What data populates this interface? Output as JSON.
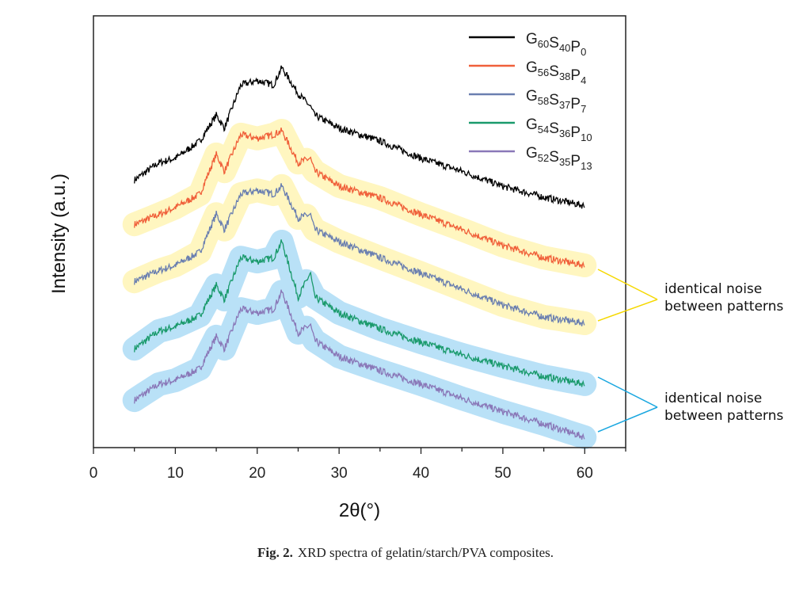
{
  "chart_data": {
    "type": "line",
    "title": "",
    "xlabel": "2θ(°)",
    "ylabel": "Intensity (a.u.)",
    "xlim": [
      0,
      65
    ],
    "ylim": [
      0,
      100
    ],
    "xticks": [
      0,
      10,
      20,
      30,
      40,
      50,
      60
    ],
    "grid": false,
    "legend_position": "top-right",
    "x": [
      5,
      8,
      10,
      13,
      15,
      16,
      18,
      20,
      22,
      23,
      25,
      26.5,
      27,
      30,
      35,
      40,
      45,
      50,
      55,
      60
    ],
    "series": [
      {
        "name": "G60S40P0",
        "label_parts": [
          [
            "G",
            "60"
          ],
          [
            "S",
            "40"
          ],
          [
            "P",
            "0"
          ]
        ],
        "color": "#000000",
        "values": [
          62,
          66,
          67,
          71,
          77,
          74,
          84,
          85,
          84,
          88,
          82,
          79,
          77,
          74,
          71,
          67,
          64,
          60.5,
          58,
          56
        ]
      },
      {
        "name": "G56S38P4",
        "label_parts": [
          [
            "G",
            "56"
          ],
          [
            "S",
            "38"
          ],
          [
            "P",
            "4"
          ]
        ],
        "color": "#f0603a",
        "values": [
          51.7,
          54,
          55.6,
          58.7,
          67.9,
          64,
          72.5,
          71.6,
          72.5,
          73.4,
          66,
          67,
          64,
          60.6,
          57.8,
          54,
          50.5,
          46.8,
          44,
          42.2
        ]
      },
      {
        "name": "G58S37P7",
        "label_parts": [
          [
            "G",
            "58"
          ],
          [
            "S",
            "37"
          ],
          [
            "P",
            "7"
          ]
        ],
        "color": "#6a7fb0",
        "values": [
          38.5,
          41,
          42.2,
          45.3,
          54.1,
          50.5,
          58.7,
          59.6,
          58.7,
          60.6,
          53.2,
          54,
          50.5,
          47.7,
          44,
          40.4,
          36.7,
          33,
          30.3,
          28.8
        ]
      },
      {
        "name": "G54S36P10",
        "label_parts": [
          [
            "G",
            "54"
          ],
          [
            "S",
            "36"
          ],
          [
            "P",
            "10"
          ]
        ],
        "color": "#1a9a6c",
        "values": [
          22.9,
          27,
          28,
          30.6,
          37.6,
          34.3,
          44,
          43.1,
          44,
          47.7,
          34.9,
          40.4,
          34.9,
          31.2,
          27.5,
          24.4,
          21.5,
          18.9,
          16.5,
          14.7
        ]
      },
      {
        "name": "G52S35P13",
        "label_parts": [
          [
            "G",
            "52"
          ],
          [
            "S",
            "35"
          ],
          [
            "P",
            "13"
          ]
        ],
        "color": "#8a78b8",
        "values": [
          11,
          14.7,
          15.6,
          18.3,
          25.7,
          22.9,
          32.1,
          31.2,
          32.1,
          36.1,
          26.6,
          28.4,
          24.8,
          21.1,
          17.8,
          14.7,
          11.4,
          8.3,
          5.5,
          2.4
        ]
      }
    ],
    "highlights": [
      {
        "series": [
          "G56S38P4",
          "G58S37P7"
        ],
        "color": "#fff6c0",
        "line_color": "#f5d800"
      },
      {
        "series": [
          "G54S36P10",
          "G52S35P13"
        ],
        "color": "#b9e1f7",
        "line_color": "#1aa7e0"
      }
    ],
    "annotations": [
      {
        "text_line1": "identical noise",
        "text_line2": "between patterns"
      },
      {
        "text_line1": "identical noise",
        "text_line2": "between patterns"
      }
    ]
  },
  "caption": {
    "label": "Fig. 2.",
    "text": "XRD spectra of gelatin/starch/PVA composites."
  }
}
